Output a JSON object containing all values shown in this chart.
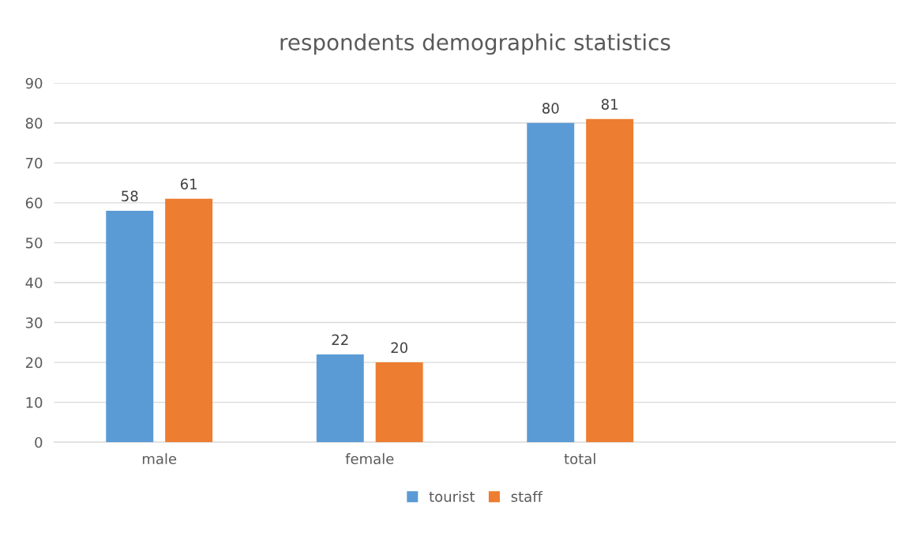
{
  "chart_data": {
    "type": "bar",
    "title": "respondents demographic statistics",
    "categories": [
      "male",
      "female",
      "total",
      null
    ],
    "series": [
      {
        "name": "tourist",
        "color": "#5b9bd5",
        "values": [
          58,
          22,
          80,
          null
        ]
      },
      {
        "name": "staff",
        "color": "#ed7d31",
        "values": [
          61,
          20,
          81,
          null
        ]
      }
    ],
    "ylim": [
      0,
      90
    ],
    "yticks": [
      0,
      10,
      20,
      30,
      40,
      50,
      60,
      70,
      80,
      90
    ],
    "grid": "y",
    "legend": "bottom",
    "data_labels": true
  }
}
